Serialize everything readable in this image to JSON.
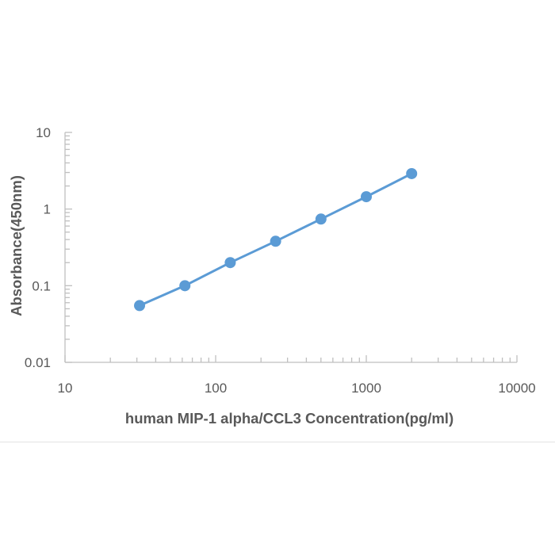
{
  "chart_data": {
    "type": "line",
    "title": "",
    "xlabel": "human MIP-1 alpha/CCL3 Concentration(pg/ml)",
    "ylabel": "Absorbance(450nm)",
    "x_scale": "log",
    "y_scale": "log",
    "xlim": [
      10,
      10000
    ],
    "ylim": [
      0.01,
      10
    ],
    "x_tick_labels": [
      "10",
      "100",
      "1000",
      "10000"
    ],
    "y_tick_labels": [
      "0.01",
      "0.1",
      "1",
      "10"
    ],
    "x_ticks": [
      10,
      100,
      1000,
      10000
    ],
    "y_ticks": [
      0.01,
      0.1,
      1,
      10
    ],
    "grid": false,
    "legend": "none",
    "series": [
      {
        "x": [
          31.25,
          62.5,
          125,
          250,
          500,
          1000,
          2000
        ],
        "y": [
          0.055,
          0.1,
          0.2,
          0.38,
          0.74,
          1.45,
          2.9
        ],
        "color": "#5b9bd5",
        "marker": "circle"
      }
    ]
  }
}
